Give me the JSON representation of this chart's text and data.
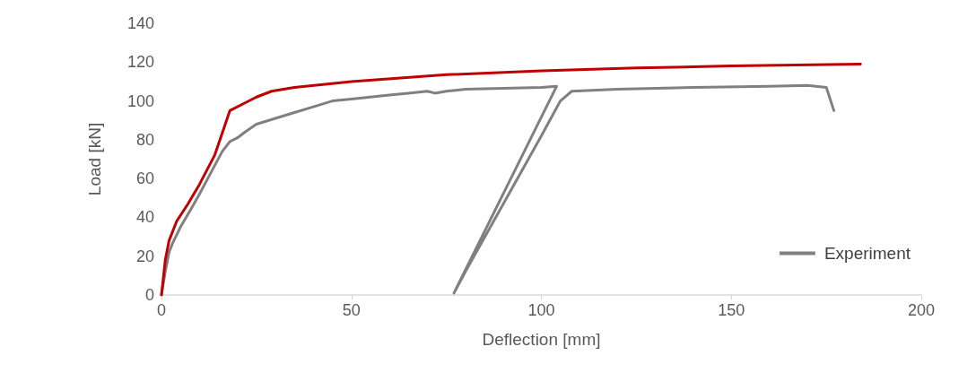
{
  "chart_data": {
    "type": "line",
    "xlabel": "Deflection [mm]",
    "ylabel": "Load [kN]",
    "xlim": [
      0,
      200
    ],
    "xticks": [
      0,
      50,
      100,
      150,
      200
    ],
    "ylim": [
      0,
      140
    ],
    "yticks": [
      0,
      20,
      40,
      60,
      80,
      100,
      120,
      140
    ],
    "grid": false,
    "legend": "bottom right",
    "marker": "none",
    "line_style": "solid",
    "series": [
      {
        "name": "Experiment",
        "color": "#808080",
        "x": [
          0,
          1,
          2,
          3,
          5,
          8,
          10,
          13,
          16,
          18,
          20,
          22,
          25,
          30,
          35,
          40,
          45,
          50,
          55,
          60,
          65,
          70,
          72,
          75,
          80,
          90,
          100,
          104,
          77,
          80,
          90,
          100,
          105,
          108,
          120,
          140,
          160,
          170,
          175,
          176,
          177
        ],
        "values": [
          0,
          12,
          22,
          27,
          35,
          45,
          52,
          63,
          74,
          79,
          81,
          84,
          88,
          91,
          94,
          97,
          100,
          101,
          102,
          103,
          104,
          105,
          104,
          105,
          106,
          106.5,
          107,
          107.5,
          1,
          12,
          47,
          82,
          100,
          105,
          106,
          107,
          107.5,
          108,
          107,
          101,
          95
        ]
      },
      {
        "color": "#c00000",
        "x": [
          0,
          1,
          2,
          4,
          7,
          10,
          14,
          18,
          22,
          25,
          29,
          35,
          50,
          75,
          100,
          125,
          150,
          184
        ],
        "values": [
          0,
          18,
          28,
          38,
          47,
          57,
          72,
          95,
          99,
          102,
          105,
          107,
          110,
          113.5,
          115.5,
          117,
          118,
          119
        ]
      }
    ]
  }
}
